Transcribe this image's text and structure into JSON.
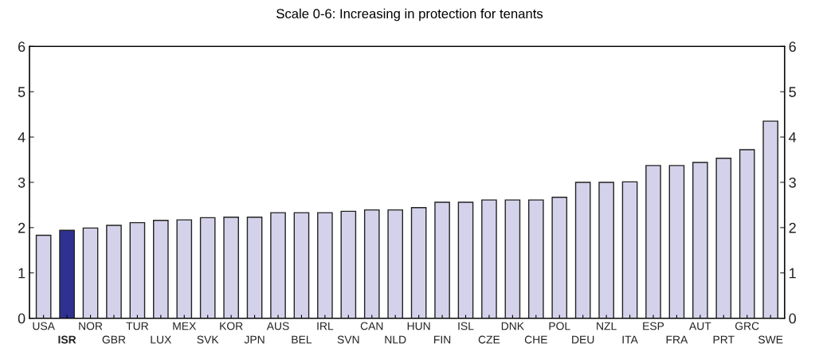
{
  "chart_data": {
    "type": "bar",
    "title": "Scale 0-6: Increasing in protection for tenants",
    "categories": [
      "USA",
      "ISR",
      "NOR",
      "GBR",
      "TUR",
      "LUX",
      "MEX",
      "SVK",
      "KOR",
      "JPN",
      "AUS",
      "BEL",
      "IRL",
      "SVN",
      "CAN",
      "NLD",
      "HUN",
      "FIN",
      "ISL",
      "CZE",
      "DNK",
      "CHE",
      "POL",
      "DEU",
      "NZL",
      "ITA",
      "ESP",
      "FRA",
      "AUT",
      "PRT",
      "GRC",
      "SWE"
    ],
    "values": [
      1.83,
      1.94,
      1.99,
      2.05,
      2.11,
      2.16,
      2.17,
      2.22,
      2.23,
      2.23,
      2.33,
      2.33,
      2.33,
      2.36,
      2.39,
      2.39,
      2.44,
      2.56,
      2.56,
      2.61,
      2.61,
      2.61,
      2.67,
      3.0,
      3.0,
      3.01,
      3.37,
      3.37,
      3.44,
      3.53,
      3.72,
      4.35
    ],
    "colors": [
      "#d3d2ea",
      "#2e3192",
      "#d3d2ea",
      "#d3d2ea",
      "#d3d2ea",
      "#d3d2ea",
      "#d3d2ea",
      "#d3d2ea",
      "#d3d2ea",
      "#d3d2ea",
      "#d3d2ea",
      "#d3d2ea",
      "#d3d2ea",
      "#d3d2ea",
      "#d3d2ea",
      "#d3d2ea",
      "#d3d2ea",
      "#d3d2ea",
      "#d3d2ea",
      "#d3d2ea",
      "#d3d2ea",
      "#d3d2ea",
      "#d3d2ea",
      "#d3d2ea",
      "#d3d2ea",
      "#d3d2ea",
      "#d3d2ea",
      "#d3d2ea",
      "#d3d2ea",
      "#d3d2ea",
      "#d3d2ea",
      "#d3d2ea"
    ],
    "ylim": [
      0,
      6
    ],
    "yticks": [
      0,
      1,
      2,
      3,
      4,
      5,
      6
    ],
    "y2lim": [
      0,
      6
    ],
    "y2ticks": [
      0,
      1,
      2,
      3,
      4,
      5,
      6
    ],
    "grid": false,
    "legend": false
  }
}
